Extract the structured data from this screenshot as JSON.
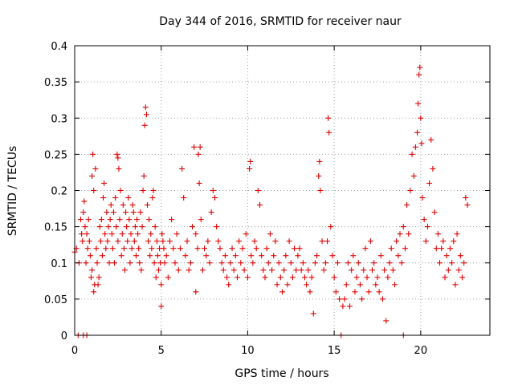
{
  "chart_data": {
    "type": "scatter",
    "title": "Day 344 of 2016, SRMTID for receiver naur",
    "xlabel": "GPS time / hours",
    "ylabel": "SRMTID / TECUs",
    "xlim": [
      0,
      24
    ],
    "ylim": [
      0,
      0.4
    ],
    "x_ticks": [
      0,
      5,
      10,
      15,
      20
    ],
    "x_tick_labels": [
      "0",
      "5",
      "10",
      "15",
      "20"
    ],
    "y_ticks": [
      0,
      0.05,
      0.1,
      0.15,
      0.2,
      0.25,
      0.3,
      0.35,
      0.4
    ],
    "y_tick_labels": [
      "0",
      "0.05",
      "0.1",
      "0.15",
      "0.2",
      "0.25",
      "0.3",
      "0.35",
      "0.4"
    ],
    "grid": true,
    "marker": "+",
    "marker_color": "#e00000",
    "series": [
      {
        "name": "SRMTID",
        "points": [
          [
            0.0,
            0.115
          ],
          [
            0.1,
            0.12
          ],
          [
            0.2,
            0.0
          ],
          [
            0.25,
            0.1
          ],
          [
            0.35,
            0.16
          ],
          [
            0.4,
            0.14
          ],
          [
            0.45,
            0.13
          ],
          [
            0.5,
            0.0
          ],
          [
            0.5,
            0.17
          ],
          [
            0.55,
            0.185
          ],
          [
            0.6,
            0.15
          ],
          [
            0.65,
            0.1
          ],
          [
            0.7,
            0.0
          ],
          [
            0.7,
            0.14
          ],
          [
            0.75,
            0.12
          ],
          [
            0.8,
            0.16
          ],
          [
            0.85,
            0.13
          ],
          [
            0.9,
            0.11
          ],
          [
            0.95,
            0.08
          ],
          [
            1.0,
            0.22
          ],
          [
            1.0,
            0.09
          ],
          [
            1.05,
            0.25
          ],
          [
            1.1,
            0.2
          ],
          [
            1.1,
            0.06
          ],
          [
            1.15,
            0.07
          ],
          [
            1.2,
            0.23
          ],
          [
            1.25,
            0.12
          ],
          [
            1.3,
            0.1
          ],
          [
            1.35,
            0.07
          ],
          [
            1.4,
            0.08
          ],
          [
            1.45,
            0.15
          ],
          [
            1.5,
            0.13
          ],
          [
            1.55,
            0.16
          ],
          [
            1.6,
            0.11
          ],
          [
            1.65,
            0.19
          ],
          [
            1.7,
            0.21
          ],
          [
            1.75,
            0.14
          ],
          [
            1.8,
            0.12
          ],
          [
            1.85,
            0.17
          ],
          [
            1.9,
            0.13
          ],
          [
            1.95,
            0.15
          ],
          [
            2.0,
            0.1
          ],
          [
            2.05,
            0.16
          ],
          [
            2.1,
            0.18
          ],
          [
            2.15,
            0.14
          ],
          [
            2.2,
            0.12
          ],
          [
            2.25,
            0.17
          ],
          [
            2.3,
            0.1
          ],
          [
            2.35,
            0.19
          ],
          [
            2.4,
            0.15
          ],
          [
            2.45,
            0.25
          ],
          [
            2.5,
            0.245
          ],
          [
            2.5,
            0.13
          ],
          [
            2.55,
            0.23
          ],
          [
            2.6,
            0.16
          ],
          [
            2.65,
            0.2
          ],
          [
            2.7,
            0.11
          ],
          [
            2.75,
            0.14
          ],
          [
            2.8,
            0.18
          ],
          [
            2.85,
            0.12
          ],
          [
            2.9,
            0.09
          ],
          [
            2.95,
            0.17
          ],
          [
            3.0,
            0.15
          ],
          [
            3.05,
            0.13
          ],
          [
            3.1,
            0.19
          ],
          [
            3.15,
            0.16
          ],
          [
            3.2,
            0.1
          ],
          [
            3.25,
            0.14
          ],
          [
            3.3,
            0.12
          ],
          [
            3.35,
            0.18
          ],
          [
            3.4,
            0.17
          ],
          [
            3.45,
            0.13
          ],
          [
            3.5,
            0.15
          ],
          [
            3.55,
            0.11
          ],
          [
            3.6,
            0.16
          ],
          [
            3.65,
            0.14
          ],
          [
            3.7,
            0.12
          ],
          [
            3.75,
            0.1
          ],
          [
            3.8,
            0.17
          ],
          [
            3.85,
            0.09
          ],
          [
            3.9,
            0.15
          ],
          [
            3.95,
            0.2
          ],
          [
            4.0,
            0.22
          ],
          [
            4.05,
            0.29
          ],
          [
            4.1,
            0.315
          ],
          [
            4.15,
            0.305
          ],
          [
            4.2,
            0.18
          ],
          [
            4.25,
            0.13
          ],
          [
            4.3,
            0.16
          ],
          [
            4.35,
            0.11
          ],
          [
            4.4,
            0.14
          ],
          [
            4.45,
            0.12
          ],
          [
            4.5,
            0.19
          ],
          [
            4.55,
            0.2
          ],
          [
            4.6,
            0.1
          ],
          [
            4.65,
            0.15
          ],
          [
            4.7,
            0.08
          ],
          [
            4.75,
            0.13
          ],
          [
            4.8,
            0.11
          ],
          [
            4.85,
            0.09
          ],
          [
            4.9,
            0.12
          ],
          [
            4.95,
            0.1
          ],
          [
            5.0,
            0.07
          ],
          [
            5.0,
            0.04
          ],
          [
            5.05,
            0.14
          ],
          [
            5.1,
            0.13
          ],
          [
            5.15,
            0.12
          ],
          [
            5.2,
            0.1
          ],
          [
            5.3,
            0.11
          ],
          [
            5.4,
            0.08
          ],
          [
            5.5,
            0.13
          ],
          [
            5.6,
            0.16
          ],
          [
            5.7,
            0.12
          ],
          [
            5.8,
            0.1
          ],
          [
            5.9,
            0.14
          ],
          [
            6.0,
            0.09
          ],
          [
            6.1,
            0.12
          ],
          [
            6.2,
            0.23
          ],
          [
            6.3,
            0.19
          ],
          [
            6.4,
            0.11
          ],
          [
            6.5,
            0.13
          ],
          [
            6.6,
            0.09
          ],
          [
            6.7,
            0.1
          ],
          [
            6.8,
            0.15
          ],
          [
            6.9,
            0.26
          ],
          [
            7.0,
            0.06
          ],
          [
            7.0,
            0.14
          ],
          [
            7.1,
            0.12
          ],
          [
            7.15,
            0.25
          ],
          [
            7.2,
            0.21
          ],
          [
            7.25,
            0.26
          ],
          [
            7.3,
            0.16
          ],
          [
            7.4,
            0.09
          ],
          [
            7.5,
            0.12
          ],
          [
            7.6,
            0.11
          ],
          [
            7.7,
            0.13
          ],
          [
            7.8,
            0.1
          ],
          [
            7.9,
            0.17
          ],
          [
            8.0,
            0.2
          ],
          [
            8.1,
            0.19
          ],
          [
            8.2,
            0.15
          ],
          [
            8.3,
            0.13
          ],
          [
            8.4,
            0.12
          ],
          [
            8.5,
            0.1
          ],
          [
            8.6,
            0.09
          ],
          [
            8.7,
            0.11
          ],
          [
            8.8,
            0.08
          ],
          [
            8.9,
            0.07
          ],
          [
            9.0,
            0.1
          ],
          [
            9.1,
            0.12
          ],
          [
            9.2,
            0.09
          ],
          [
            9.3,
            0.11
          ],
          [
            9.4,
            0.08
          ],
          [
            9.5,
            0.13
          ],
          [
            9.6,
            0.1
          ],
          [
            9.7,
            0.12
          ],
          [
            9.8,
            0.09
          ],
          [
            9.9,
            0.14
          ],
          [
            10.0,
            0.08
          ],
          [
            10.1,
            0.23
          ],
          [
            10.15,
            0.24
          ],
          [
            10.2,
            0.11
          ],
          [
            10.3,
            0.1
          ],
          [
            10.4,
            0.13
          ],
          [
            10.5,
            0.12
          ],
          [
            10.6,
            0.2
          ],
          [
            10.7,
            0.18
          ],
          [
            10.8,
            0.11
          ],
          [
            10.9,
            0.09
          ],
          [
            11.0,
            0.08
          ],
          [
            11.1,
            0.12
          ],
          [
            11.2,
            0.1
          ],
          [
            11.3,
            0.14
          ],
          [
            11.4,
            0.09
          ],
          [
            11.5,
            0.11
          ],
          [
            11.6,
            0.13
          ],
          [
            11.7,
            0.07
          ],
          [
            11.8,
            0.1
          ],
          [
            11.9,
            0.08
          ],
          [
            12.0,
            0.06
          ],
          [
            12.1,
            0.09
          ],
          [
            12.2,
            0.11
          ],
          [
            12.3,
            0.07
          ],
          [
            12.4,
            0.13
          ],
          [
            12.5,
            0.1
          ],
          [
            12.6,
            0.08
          ],
          [
            12.7,
            0.12
          ],
          [
            12.8,
            0.09
          ],
          [
            12.9,
            0.11
          ],
          [
            13.0,
            0.12
          ],
          [
            13.1,
            0.09
          ],
          [
            13.2,
            0.1
          ],
          [
            13.3,
            0.08
          ],
          [
            13.4,
            0.07
          ],
          [
            13.5,
            0.09
          ],
          [
            13.6,
            0.06
          ],
          [
            13.7,
            0.08
          ],
          [
            13.8,
            0.03
          ],
          [
            13.9,
            0.1
          ],
          [
            14.0,
            0.11
          ],
          [
            14.1,
            0.22
          ],
          [
            14.15,
            0.24
          ],
          [
            14.2,
            0.2
          ],
          [
            14.3,
            0.13
          ],
          [
            14.4,
            0.09
          ],
          [
            14.5,
            0.1
          ],
          [
            14.6,
            0.13
          ],
          [
            14.65,
            0.3
          ],
          [
            14.7,
            0.28
          ],
          [
            14.8,
            0.15
          ],
          [
            14.9,
            0.11
          ],
          [
            15.0,
            0.08
          ],
          [
            15.1,
            0.06
          ],
          [
            15.2,
            0.1
          ],
          [
            15.3,
            0.05
          ],
          [
            15.4,
            0.0
          ],
          [
            15.5,
            0.04
          ],
          [
            15.6,
            0.05
          ],
          [
            15.7,
            0.07
          ],
          [
            15.8,
            0.1
          ],
          [
            15.9,
            0.04
          ],
          [
            16.0,
            0.09
          ],
          [
            16.1,
            0.11
          ],
          [
            16.2,
            0.06
          ],
          [
            16.3,
            0.08
          ],
          [
            16.4,
            0.1
          ],
          [
            16.5,
            0.07
          ],
          [
            16.6,
            0.05
          ],
          [
            16.7,
            0.09
          ],
          [
            16.8,
            0.12
          ],
          [
            16.9,
            0.08
          ],
          [
            17.0,
            0.06
          ],
          [
            17.1,
            0.13
          ],
          [
            17.2,
            0.09
          ],
          [
            17.3,
            0.1
          ],
          [
            17.4,
            0.07
          ],
          [
            17.5,
            0.08
          ],
          [
            17.6,
            0.06
          ],
          [
            17.7,
            0.11
          ],
          [
            17.8,
            0.05
          ],
          [
            17.9,
            0.09
          ],
          [
            18.0,
            0.02
          ],
          [
            18.1,
            0.08
          ],
          [
            18.2,
            0.1
          ],
          [
            18.3,
            0.12
          ],
          [
            18.4,
            0.09
          ],
          [
            18.5,
            0.07
          ],
          [
            18.6,
            0.13
          ],
          [
            18.7,
            0.11
          ],
          [
            18.8,
            0.14
          ],
          [
            18.9,
            0.1
          ],
          [
            19.0,
            0.0
          ],
          [
            19.0,
            0.15
          ],
          [
            19.1,
            0.12
          ],
          [
            19.2,
            0.18
          ],
          [
            19.3,
            0.14
          ],
          [
            19.4,
            0.2
          ],
          [
            19.5,
            0.25
          ],
          [
            19.6,
            0.22
          ],
          [
            19.7,
            0.26
          ],
          [
            19.8,
            0.28
          ],
          [
            19.85,
            0.32
          ],
          [
            19.9,
            0.36
          ],
          [
            19.95,
            0.37
          ],
          [
            20.0,
            0.3
          ],
          [
            20.05,
            0.265
          ],
          [
            20.1,
            0.19
          ],
          [
            20.2,
            0.16
          ],
          [
            20.3,
            0.13
          ],
          [
            20.4,
            0.15
          ],
          [
            20.5,
            0.21
          ],
          [
            20.6,
            0.27
          ],
          [
            20.7,
            0.23
          ],
          [
            20.8,
            0.17
          ],
          [
            20.9,
            0.12
          ],
          [
            21.0,
            0.14
          ],
          [
            21.1,
            0.1
          ],
          [
            21.2,
            0.12
          ],
          [
            21.3,
            0.13
          ],
          [
            21.4,
            0.08
          ],
          [
            21.5,
            0.11
          ],
          [
            21.6,
            0.09
          ],
          [
            21.7,
            0.12
          ],
          [
            21.8,
            0.1
          ],
          [
            21.9,
            0.13
          ],
          [
            22.0,
            0.07
          ],
          [
            22.1,
            0.14
          ],
          [
            22.2,
            0.09
          ],
          [
            22.3,
            0.11
          ],
          [
            22.4,
            0.08
          ],
          [
            22.5,
            0.1
          ],
          [
            22.6,
            0.19
          ],
          [
            22.7,
            0.18
          ]
        ]
      }
    ]
  }
}
